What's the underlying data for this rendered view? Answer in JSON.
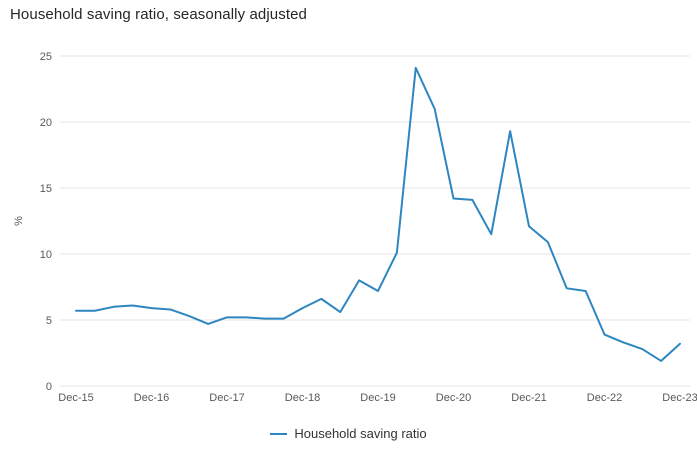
{
  "title": "Household saving ratio, seasonally adjusted",
  "legend": {
    "label": "Household saving ratio"
  },
  "colors": {
    "line": "#2e86c1",
    "grid": "#e6e6e6",
    "axis_text": "#595959",
    "title_text": "#262626",
    "legend_text": "#333333",
    "background": "#ffffff"
  },
  "chart_data": {
    "type": "line",
    "title": "Household saving ratio, seasonally adjusted",
    "xlabel": "",
    "ylabel": "%",
    "ylim": [
      0,
      25
    ],
    "yticks": [
      0,
      5,
      10,
      15,
      20,
      25
    ],
    "xtick_labels": [
      "Dec-15",
      "Dec-16",
      "Dec-17",
      "Dec-18",
      "Dec-19",
      "Dec-20",
      "Dec-21",
      "Dec-22",
      "Dec-23"
    ],
    "grid": "horizontal",
    "legend_position": "bottom",
    "x": [
      "Dec-15",
      "Mar-16",
      "Jun-16",
      "Sep-16",
      "Dec-16",
      "Mar-17",
      "Jun-17",
      "Sep-17",
      "Dec-17",
      "Mar-18",
      "Jun-18",
      "Sep-18",
      "Dec-18",
      "Mar-19",
      "Jun-19",
      "Sep-19",
      "Dec-19",
      "Mar-20",
      "Jun-20",
      "Sep-20",
      "Dec-20",
      "Mar-21",
      "Jun-21",
      "Sep-21",
      "Dec-21",
      "Mar-22",
      "Jun-22",
      "Sep-22",
      "Dec-22",
      "Mar-23",
      "Jun-23",
      "Sep-23",
      "Dec-23"
    ],
    "series": [
      {
        "name": "Household saving ratio",
        "values": [
          5.7,
          5.7,
          6.0,
          6.1,
          5.9,
          5.8,
          5.3,
          4.7,
          5.2,
          5.2,
          5.1,
          5.1,
          5.9,
          6.6,
          5.6,
          8.0,
          7.2,
          10.1,
          24.1,
          21.0,
          14.2,
          14.1,
          11.5,
          19.3,
          12.1,
          10.9,
          7.4,
          7.2,
          3.9,
          3.3,
          2.8,
          1.9,
          3.2
        ]
      }
    ]
  }
}
